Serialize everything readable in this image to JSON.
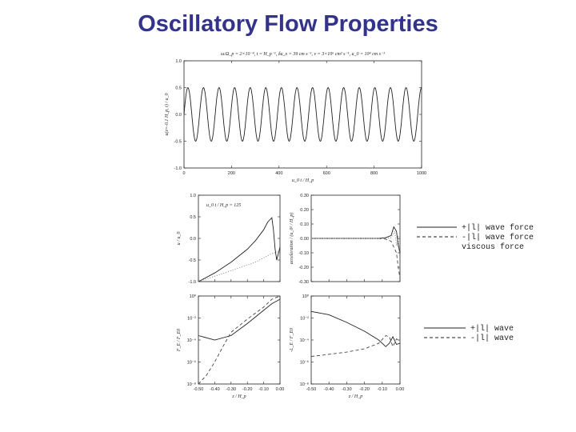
{
  "slide_title": "Oscillatory Flow Properties",
  "chart_data": [
    {
      "type": "line",
      "title": "ω/Ω_p = 2×10⁻⁴, t = H_p⁻¹, δu_x = 39 cm s⁻¹, ν = 3×10⁶ cm² s⁻¹, u_0 = 10⁴ cm s⁻¹",
      "xlabel": "u_0 t / H_p",
      "ylabel": "u(z=-0.1 H_p, t) / u_0",
      "xlim": [
        0,
        1000
      ],
      "ylim": [
        -1.0,
        1.0
      ],
      "xticks": [
        "0",
        "200",
        "400",
        "600",
        "800",
        "1000"
      ],
      "yticks": [
        "-1.0",
        "-0.5",
        "0.0",
        "0.5",
        "1.0"
      ],
      "series": [
        {
          "function": "sine",
          "amplitude": 0.5,
          "cycles": 15.25
        }
      ]
    },
    {
      "type": "line",
      "annotation": "u_0 t / H_p = 125",
      "ylabel": "u / u_0",
      "xlim": [
        -0.5,
        0.0
      ],
      "ylim": [
        -1.0,
        1.0
      ],
      "yticks": [
        "1.0",
        "0.5",
        "0.0",
        "-0.5",
        "-1.0"
      ],
      "series": [
        {
          "style": "solid",
          "x": [
            -0.5,
            -0.4,
            -0.3,
            -0.2,
            -0.15,
            -0.1,
            -0.075,
            -0.05,
            -0.04,
            -0.03,
            -0.02,
            -0.01,
            0.0
          ],
          "y": [
            -1.0,
            -0.8,
            -0.55,
            -0.25,
            -0.05,
            0.2,
            0.38,
            0.48,
            0.2,
            -0.25,
            -0.5,
            -0.35,
            -0.2
          ]
        },
        {
          "style": "dotted",
          "x": [
            -0.5,
            -0.3,
            -0.15,
            -0.05,
            0.0
          ],
          "y": [
            -1.0,
            -0.75,
            -0.55,
            -0.35,
            -0.3
          ]
        }
      ]
    },
    {
      "type": "line",
      "ylabel": "acceleration / (u_0² / H_p)",
      "xlim": [
        -0.5,
        0.0
      ],
      "ylim": [
        -0.3,
        0.3
      ],
      "yticks": [
        "0.30",
        "0.20",
        "0.10",
        "0.00",
        "-0.10",
        "-0.20",
        "-0.30"
      ],
      "series": [
        {
          "style": "solid",
          "x": [
            -0.5,
            -0.2,
            -0.12,
            -0.08,
            -0.05,
            -0.035,
            -0.02,
            -0.01,
            0.0
          ],
          "y": [
            0.0,
            0.0,
            0.0,
            0.005,
            0.02,
            0.08,
            0.05,
            -0.05,
            -0.1
          ]
        },
        {
          "style": "dashed",
          "x": [
            -0.5,
            -0.2,
            -0.12,
            -0.08,
            -0.05,
            -0.035,
            -0.02,
            -0.01,
            0.0
          ],
          "y": [
            0.0,
            0.0,
            0.0,
            -0.005,
            -0.02,
            -0.06,
            -0.1,
            -0.2,
            -0.28
          ]
        },
        {
          "style": "dotted",
          "x": [
            -0.5,
            -0.2,
            -0.1,
            -0.05,
            -0.03,
            -0.02,
            -0.01,
            0.0
          ],
          "y": [
            0.0,
            0.0,
            0.0,
            0.005,
            0.05,
            -0.05,
            0.02,
            -0.15
          ]
        }
      ]
    },
    {
      "type": "line",
      "ylabel": "F_E / F_E0",
      "xlabel": "z / H_p",
      "xlim": [
        -0.5,
        0.0
      ],
      "ylim_log10": [
        -8,
        0
      ],
      "xticks": [
        "-0.50",
        "-0.40",
        "-0.30",
        "-0.20",
        "-0.10",
        "0.00"
      ],
      "yticks": [
        "10⁰",
        "10⁻²",
        "10⁻⁴",
        "10⁻⁶",
        "10⁻⁸"
      ],
      "series": [
        {
          "style": "solid",
          "x": [
            -0.5,
            -0.4,
            -0.3,
            -0.2,
            -0.1,
            -0.05,
            0.0
          ],
          "log10_y": [
            -3.6,
            -4.0,
            -3.6,
            -2.5,
            -1.3,
            -0.7,
            -0.3
          ]
        },
        {
          "style": "dashed",
          "x": [
            -0.5,
            -0.45,
            -0.4,
            -0.35,
            -0.3,
            -0.2,
            -0.1,
            -0.05,
            0.0
          ],
          "log10_y": [
            -8.0,
            -7.2,
            -6.0,
            -4.6,
            -3.3,
            -2.1,
            -1.0,
            -0.3,
            0.0
          ]
        }
      ]
    },
    {
      "type": "line",
      "ylabel": "-L_E / F_E0",
      "xlabel": "z / H_p",
      "xlim": [
        -0.5,
        0.0
      ],
      "ylim_log10": [
        -8,
        0
      ],
      "xticks": [
        "-0.50",
        "-0.40",
        "-0.30",
        "-0.20",
        "-0.10",
        "0.00"
      ],
      "yticks": [
        "10⁰",
        "10⁻²",
        "10⁻⁴",
        "10⁻⁶",
        "10⁻⁸"
      ],
      "series": [
        {
          "style": "solid",
          "x": [
            -0.5,
            -0.4,
            -0.3,
            -0.2,
            -0.12,
            -0.08,
            -0.06,
            -0.04,
            -0.02,
            0.0
          ],
          "log10_y": [
            -1.4,
            -1.7,
            -2.4,
            -3.2,
            -4.0,
            -4.6,
            -4.3,
            -3.7,
            -4.4,
            -4.3
          ]
        },
        {
          "style": "dashed",
          "x": [
            -0.5,
            -0.4,
            -0.3,
            -0.2,
            -0.12,
            -0.08,
            -0.06,
            -0.04,
            -0.02,
            0.0
          ],
          "log10_y": [
            -5.5,
            -5.3,
            -5.1,
            -4.8,
            -4.3,
            -3.6,
            -3.7,
            -4.6,
            -3.9,
            -4.1
          ]
        }
      ]
    }
  ],
  "legend_forces": [
    {
      "style": "solid",
      "label": "+|l| wave force"
    },
    {
      "style": "dashed",
      "label": "-|l| wave force"
    },
    {
      "style": "dotted",
      "label": "viscous force"
    }
  ],
  "legend_waves": [
    {
      "style": "solid",
      "label": "+|l| wave"
    },
    {
      "style": "dashed",
      "label": "-|l| wave"
    }
  ]
}
